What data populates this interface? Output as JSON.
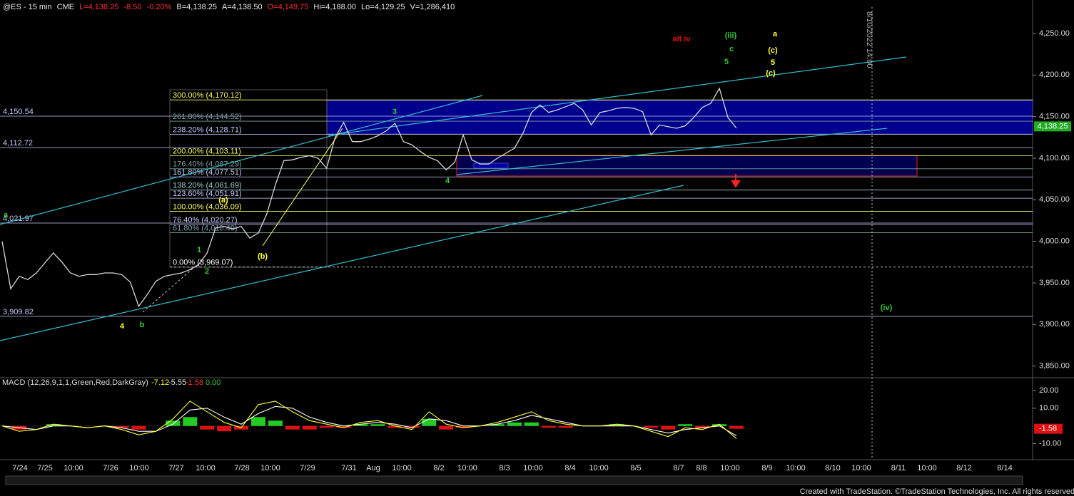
{
  "chart_data": [
    {
      "type": "line",
      "header": [
        {
          "text": "@ES - 15 min",
          "color": "#e8e8e8"
        },
        {
          "text": "CME",
          "color": "#e8e8e8"
        },
        {
          "text": "L=4,138.25",
          "color": "#ff3030"
        },
        {
          "text": "-8.50",
          "color": "#ff3030"
        },
        {
          "text": "-0.20%",
          "color": "#ff3030"
        },
        {
          "text": "B=4,138.25",
          "color": "#e8e8e8"
        },
        {
          "text": "A=4,138.50",
          "color": "#e8e8e8"
        },
        {
          "text": "O=4,149.75",
          "color": "#ff3030"
        },
        {
          "text": "Hi=4,188.00",
          "color": "#e8e8e8"
        },
        {
          "text": "Lo=4,129.25",
          "color": "#e8e8e8"
        },
        {
          "text": "V=1,286,410",
          "color": "#e8e8e8"
        }
      ],
      "xtick_labels": [
        "7/24",
        "7/25",
        "10:00",
        "7/26",
        "10:00",
        "7/27",
        "10:00",
        "7/28",
        "10:00",
        "7/29",
        "7/31",
        "Aug",
        "10:00",
        "8/2",
        "10:00",
        "8/3",
        "10:00",
        "8/4",
        "10:00",
        "8/5",
        "8/7",
        "8/8",
        "10:00",
        "8/9",
        "10:00",
        "8/10",
        "10:00",
        "8/11",
        "10:00",
        "8/12",
        "8/14"
      ],
      "values": [
        4000,
        3943,
        3958,
        3954,
        3962,
        3974,
        3986,
        3975,
        3962,
        3958,
        3960,
        3960,
        3962,
        3962,
        3960,
        3951,
        3922,
        3936,
        3952,
        3958,
        3960,
        3962,
        3966,
        3972,
        3986,
        4016,
        4018,
        4015,
        4018,
        4004,
        4010,
        4033,
        4068,
        4097,
        4098,
        4101,
        4103,
        4100,
        4088,
        4125,
        4143,
        4120,
        4120,
        4123,
        4127,
        4133,
        4142,
        4120,
        4116,
        4108,
        4101,
        4097,
        4086,
        4095,
        4128,
        4098,
        4093,
        4093,
        4100,
        4106,
        4112,
        4130,
        4155,
        4164,
        4155,
        4158,
        4162,
        4166,
        4158,
        4140,
        4155,
        4157,
        4160,
        4161,
        4160,
        4156,
        4128,
        4140,
        4138,
        4136,
        4139,
        4149,
        4161,
        4166,
        4184,
        4149,
        4136
      ],
      "color": "#d8d8d8",
      "ylim": [
        3836,
        4286
      ],
      "yticks": [
        {
          "value": 3850,
          "label": "3,850.00"
        },
        {
          "value": 3900,
          "label": "3,900.00"
        },
        {
          "value": 3950,
          "label": "3,950.00"
        },
        {
          "value": 4000,
          "label": "4,000.00"
        },
        {
          "value": 4050,
          "label": "4,050.00"
        },
        {
          "value": 4100,
          "label": "4,100.00"
        },
        {
          "value": 4150,
          "label": "4,150.00"
        },
        {
          "value": 4200,
          "label": "4,200.00"
        },
        {
          "value": 4250,
          "label": "4,250.00"
        }
      ],
      "last_price": {
        "value": 4138.25,
        "label": "4,138.25",
        "color": "#22aa22"
      },
      "levels": [
        {
          "value": 4150.54,
          "label": "4,150.54"
        },
        {
          "value": 4112.72,
          "label": "4,112.72"
        },
        {
          "value": 4021.97,
          "label": "4,021.97"
        },
        {
          "value": 3909.82,
          "label": "3,909.82"
        }
      ],
      "fib_levels": [
        {
          "value": 4170.12,
          "label": "300.00% (4,170.12)",
          "color": "#ffff66"
        },
        {
          "value": 4144.52,
          "label": "261.80% (4,144.52)",
          "color": "#7aa0a0"
        },
        {
          "value": 4128.71,
          "label": "238.20% (4,128.71)",
          "color": "#c8c8ff"
        },
        {
          "value": 4103.11,
          "label": "200.00% (4,103.11)",
          "color": "#ffff66"
        },
        {
          "value": 4087.29,
          "label": "176.40% (4,087.29)",
          "color": "#7aa0a0"
        },
        {
          "value": 4077.51,
          "label": "161.80% (4,077.51)",
          "color": "#c8c8ff"
        },
        {
          "value": 4061.69,
          "label": "138.20% (4,061.69)",
          "color": "#9ad0d0"
        },
        {
          "value": 4051.91,
          "label": "123.60% (4,051.91)",
          "color": "#c8c8ff"
        },
        {
          "value": 4036.09,
          "label": "100.00% (4,036.09)",
          "color": "#ffff66"
        },
        {
          "value": 4020.27,
          "label": "76.40% (4,020.27)",
          "color": "#c8c8ff"
        },
        {
          "value": 4010.49,
          "label": "61.80% (4,010.49)",
          "color": "#7aa0a0"
        },
        {
          "value": 3969.07,
          "label": "0.00% (3,969.07)",
          "color": "#ffffff"
        }
      ],
      "wave_labels": [
        {
          "text": "alt iv",
          "color": "#dd1111"
        },
        {
          "text": "(iii)",
          "color": "#33cc33"
        },
        {
          "text": "c",
          "color": "#33cc33"
        },
        {
          "text": "5",
          "color": "#33cc33"
        },
        {
          "text": "a",
          "color": "#ffff33"
        },
        {
          "text": "(c)",
          "color": "#ffff33"
        },
        {
          "text": "5",
          "color": "#ffff33"
        },
        {
          "text": "(c)",
          "color": "#ffff33"
        },
        {
          "text": "3",
          "color": "#33cc33"
        },
        {
          "text": "4",
          "color": "#33cc33"
        },
        {
          "text": "1",
          "color": "#33cc33"
        },
        {
          "text": "2",
          "color": "#33cc33"
        },
        {
          "text": "(a)",
          "color": "#ffff33"
        },
        {
          "text": "(b)",
          "color": "#ffff33"
        },
        {
          "text": "4",
          "color": "#ffff33"
        },
        {
          "text": "b",
          "color": "#33cc33"
        },
        {
          "text": "(iv)",
          "color": "#33cc33"
        },
        {
          "text": "a",
          "color": "#33cc33"
        }
      ],
      "marker_label": "8/10/2022 14:00"
    },
    {
      "type": "macd",
      "title": "MACD (12,26,9,1,1,Green,Red,DarkGray)",
      "readouts": [
        -7.12,
        -5.55,
        -1.58,
        {
          "value": 0,
          "label": "0.00"
        }
      ],
      "readout_colors": [
        "#ffff33",
        "#dddddd",
        "#ff3030",
        "#33cc33"
      ],
      "macd_values": [
        0,
        -3,
        -2,
        1,
        0,
        -1,
        0,
        -2,
        -5,
        -3,
        4,
        14,
        8,
        2,
        -1,
        12,
        14,
        8,
        3,
        1,
        -1,
        2,
        3,
        0,
        -2,
        8,
        1,
        -1,
        0,
        2,
        5,
        8,
        3,
        1,
        0,
        0,
        1,
        0,
        -3,
        -6,
        -1,
        -2,
        1,
        -7.12
      ],
      "signal_values": [
        0,
        -1,
        -2,
        0,
        0,
        -1,
        0,
        -1,
        -3,
        -3,
        1,
        9,
        10,
        5,
        1,
        7,
        11,
        10,
        5,
        2,
        0,
        1,
        2,
        1,
        -1,
        4,
        3,
        0,
        0,
        1,
        3,
        6,
        4,
        2,
        0,
        0,
        0,
        0,
        -2,
        -4,
        -2,
        -1,
        0,
        -5.55
      ],
      "hist_values": [
        0,
        -2,
        0,
        1,
        0,
        0,
        0,
        -1,
        -2,
        0,
        3,
        5,
        -2,
        -3,
        -2,
        5,
        3,
        -2,
        -2,
        -1,
        -1,
        1,
        1,
        -1,
        -1,
        4,
        -2,
        -1,
        0,
        1,
        2,
        2,
        -1,
        -1,
        0,
        0,
        1,
        0,
        -1,
        -2,
        1,
        -1,
        1,
        -1.58
      ],
      "macd_color": "#ffff33",
      "signal_color": "#ffffff",
      "up_color": "#22cc22",
      "down_color": "#dd1111",
      "ylim": [
        -19,
        26
      ],
      "yticks": [
        {
          "value": -10,
          "label": "-10.00"
        },
        {
          "value": 10,
          "label": "10.00"
        },
        {
          "value": 20,
          "label": "20.00"
        }
      ]
    }
  ],
  "footer": "Created with TradeStation. ©TradeStation Technologies, Inc. All rights reserved."
}
